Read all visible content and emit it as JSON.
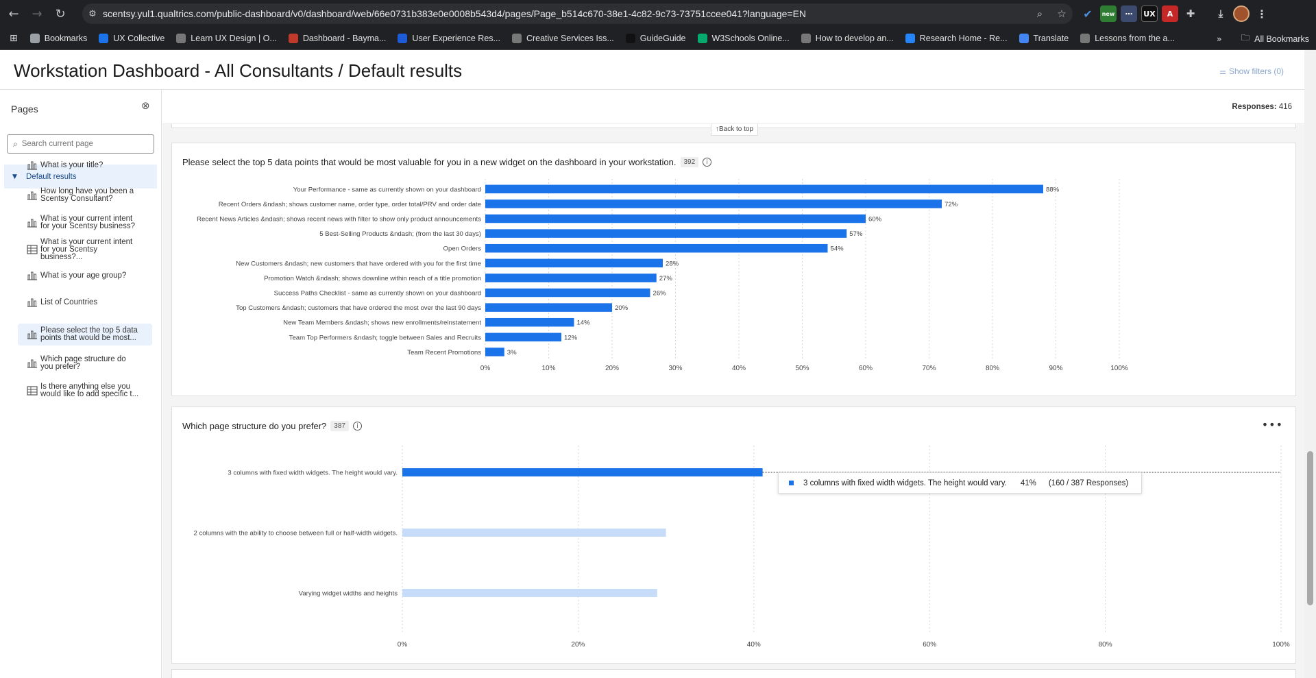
{
  "browser": {
    "url": "scentsy.yul1.qualtrics.com/public-dashboard/v0/dashboard/web/66e0731b383e0e0008b543d4/pages/Page_b514c670-38e1-4c82-9c73-73751ccee041?language=EN",
    "bookmarks": [
      {
        "label": "Bookmarks",
        "icon": "star-icon",
        "color": "#9aa0a6"
      },
      {
        "label": "UX Collective",
        "icon": "ux-collective-icon",
        "color": "#1a73e8"
      },
      {
        "label": "Learn UX Design | O...",
        "icon": "globe-icon",
        "color": "#777"
      },
      {
        "label": "Dashboard - Bayma...",
        "icon": "k-logo-icon",
        "color": "#c0392b"
      },
      {
        "label": "User Experience Res...",
        "icon": "triangle-icon",
        "color": "#1e5bd8"
      },
      {
        "label": "Creative Services Iss...",
        "icon": "globe-icon",
        "color": "#777"
      },
      {
        "label": "GuideGuide",
        "icon": "gg-icon",
        "color": "#111"
      },
      {
        "label": "W3Schools Online...",
        "icon": "w3-icon",
        "color": "#04aa6d"
      },
      {
        "label": "How to develop an...",
        "icon": "globe-icon",
        "color": "#777"
      },
      {
        "label": "Research Home - Re...",
        "icon": "confluence-icon",
        "color": "#2684ff"
      },
      {
        "label": "Translate",
        "icon": "translate-icon",
        "color": "#4285f4"
      },
      {
        "label": "Lessons from the a...",
        "icon": "globe-icon",
        "color": "#777"
      }
    ],
    "all_bookmarks": "All Bookmarks"
  },
  "page": {
    "title": "Workstation Dashboard - All Consultants / Default results",
    "show_filters": "Show filters (0)",
    "responses_label": "Responses:",
    "responses_value": "416",
    "back_to_top": "↑Back to top"
  },
  "sidebar": {
    "heading": "Pages",
    "search_placeholder": "Search current page",
    "section": "Default results",
    "items": [
      {
        "label": "What is your title?",
        "icon": "bar-chart-icon"
      },
      {
        "label": "How long have you been a Scentsy Consultant?",
        "icon": "bar-chart-icon"
      },
      {
        "label": "What is your current intent for your Scentsy business?",
        "icon": "bar-chart-icon"
      },
      {
        "label": "What is your current intent for your Scentsy business?...",
        "icon": "table-icon"
      },
      {
        "label": "What is your age group?",
        "icon": "bar-chart-icon"
      },
      {
        "label": "List of Countries",
        "icon": "bar-chart-icon"
      },
      {
        "label": "Please select the top 5 data points that would be most...",
        "icon": "bar-chart-icon",
        "active": true
      },
      {
        "label": "Which page structure do you prefer?",
        "icon": "bar-chart-icon"
      },
      {
        "label": "Is there anything else you would like to add specific t...",
        "icon": "table-icon"
      }
    ]
  },
  "cards": [
    {
      "title": "Please select the top 5 data points that would be most valuable for you in a new widget on the dashboard in your workstation.",
      "count": "392"
    },
    {
      "title": "Which page structure do you prefer?",
      "count": "387"
    }
  ],
  "tooltip": {
    "label": "3 columns with fixed width widgets. The height would vary.",
    "percent": "41%",
    "responses": "(160 / 387 Responses)"
  },
  "colors": {
    "bar": "#1a73e8",
    "bar_faded": "#c6dcf8",
    "grid": "#d6d6d6"
  },
  "chart_data": [
    {
      "type": "bar",
      "orientation": "horizontal",
      "categories": [
        "Your Performance - same as currently shown on your dashboard",
        "Recent Orders &ndash; shows customer name, order type, order total/PRV and order date",
        "Recent News Articles &ndash; shows recent news with filter to show only product announcements",
        "5 Best-Selling Products &ndash; (from the last 30 days)",
        "Open Orders",
        "New Customers &ndash; new customers that have ordered with you for the first time",
        "Promotion Watch &ndash; shows downline within reach of a title promotion",
        "Success Paths Checklist - same as currently shown on your dashboard",
        "Top Customers &ndash; customers that have ordered the most over the last 90 days",
        "New Team Members &ndash; shows new enrollments/reinstatement",
        "Team Top Performers &ndash; toggle between Sales and Recruits",
        "Team Recent Promotions"
      ],
      "values": [
        88,
        72,
        60,
        57,
        54,
        28,
        27,
        26,
        20,
        14,
        12,
        3
      ],
      "value_labels": [
        "88%",
        "72%",
        "60%",
        "57%",
        "54%",
        "28%",
        "27%",
        "26%",
        "20%",
        "14%",
        "12%",
        "3%"
      ],
      "ticks": [
        "0%",
        "10%",
        "20%",
        "30%",
        "40%",
        "50%",
        "60%",
        "70%",
        "80%",
        "90%",
        "100%"
      ],
      "xlim": [
        0,
        100
      ]
    },
    {
      "type": "bar",
      "orientation": "horizontal",
      "categories": [
        "3 columns with fixed width widgets. The height would vary.",
        "2 columns with the ability to choose between full or half-width widgets.",
        "Varying widget widths and heights"
      ],
      "values": [
        41,
        30,
        29
      ],
      "highlighted": 0,
      "ticks": [
        "0%",
        "20%",
        "40%",
        "60%",
        "80%",
        "100%"
      ],
      "xlim": [
        0,
        100
      ]
    }
  ]
}
